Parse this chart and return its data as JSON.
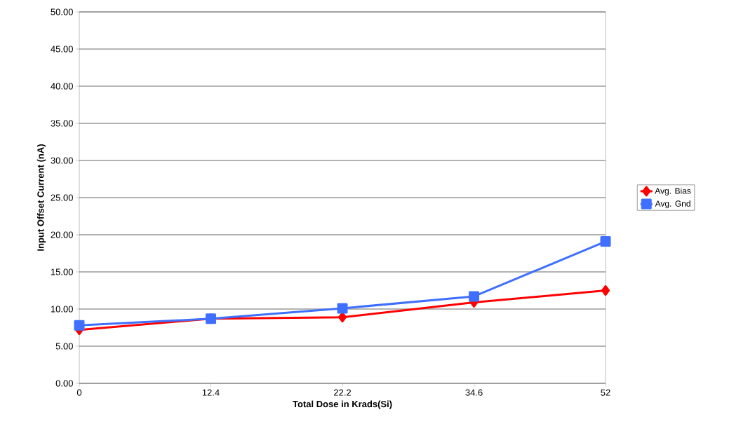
{
  "chart_data": {
    "type": "line",
    "xlabel": "Total Dose in Krads(Si)",
    "ylabel": "Input Offset Current (nA)",
    "categories": [
      "0",
      "12.4",
      "22.2",
      "34.6",
      "52"
    ],
    "series": [
      {
        "name": "Avg. Bias",
        "color": "#ff0000",
        "marker": "diamond",
        "values": [
          7.2,
          8.7,
          8.9,
          10.9,
          12.5
        ]
      },
      {
        "name": "Avg. Gnd",
        "color": "#3f6fff",
        "marker": "square",
        "values": [
          7.8,
          8.7,
          10.1,
          11.7,
          19.1
        ]
      }
    ],
    "ylim": [
      0,
      50
    ],
    "yticks": [
      {
        "value": 0,
        "label": "0.00"
      },
      {
        "value": 5,
        "label": "5.00"
      },
      {
        "value": 10,
        "label": "10.00"
      },
      {
        "value": 15,
        "label": "15.00"
      },
      {
        "value": 20,
        "label": "20.00"
      },
      {
        "value": 25,
        "label": "25.00"
      },
      {
        "value": 30,
        "label": "30.00"
      },
      {
        "value": 35,
        "label": "35.00"
      },
      {
        "value": 40,
        "label": "40.00"
      },
      {
        "value": 45,
        "label": "45.00"
      },
      {
        "value": 50,
        "label": "50.00"
      }
    ],
    "grid": "y",
    "legend": "right",
    "line_style": "solid"
  }
}
